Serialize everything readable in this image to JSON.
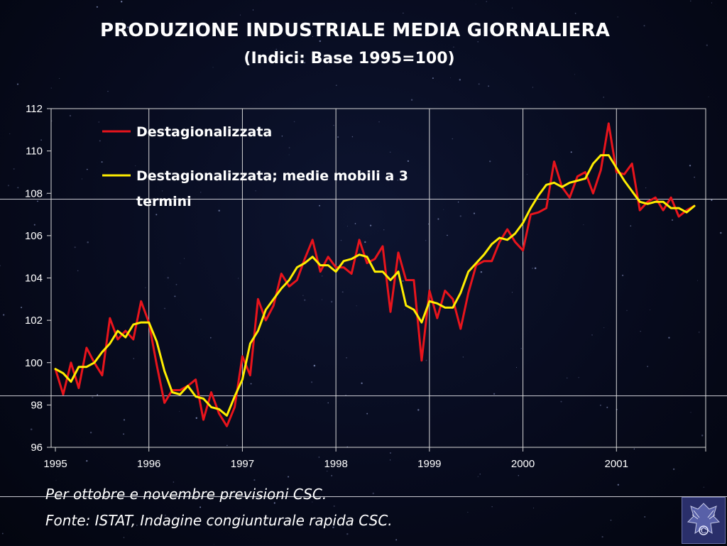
{
  "title": "PRODUZIONE INDUSTRIALE MEDIA GIORNALIERA",
  "subtitle": "(Indici: Base 1995=100)",
  "notes": {
    "line1": "Per ottobre e novembre previsioni CSC.",
    "line2": "Fonte: ISTAT, Indagine congiunturale rapida CSC."
  },
  "colors": {
    "series1": "#e8141c",
    "series2": "#ffee00",
    "grid": "#d8d8d8",
    "background": "#070b1e"
  },
  "logo": {
    "icon": "confindustria-eagle-logo"
  },
  "chart_data": {
    "type": "line",
    "title": "PRODUZIONE INDUSTRIALE MEDIA GIORNALIERA",
    "subtitle": "(Indici: Base 1995=100)",
    "xlabel": "",
    "ylabel": "",
    "ylim": [
      96,
      112
    ],
    "xlim": [
      "1995-01",
      "2001-12"
    ],
    "yticks": [
      96,
      98,
      100,
      102,
      104,
      106,
      108,
      110,
      112
    ],
    "xticks": [
      "1995",
      "1996",
      "1997",
      "1998",
      "1999",
      "2000",
      "2001"
    ],
    "grid": "vertical lines at year starts",
    "legend_position": "top-left",
    "x": [
      "1995-01",
      "1995-02",
      "1995-03",
      "1995-04",
      "1995-05",
      "1995-06",
      "1995-07",
      "1995-08",
      "1995-09",
      "1995-10",
      "1995-11",
      "1995-12",
      "1996-01",
      "1996-02",
      "1996-03",
      "1996-04",
      "1996-05",
      "1996-06",
      "1996-07",
      "1996-08",
      "1996-09",
      "1996-10",
      "1996-11",
      "1996-12",
      "1997-01",
      "1997-02",
      "1997-03",
      "1997-04",
      "1997-05",
      "1997-06",
      "1997-07",
      "1997-08",
      "1997-09",
      "1997-10",
      "1997-11",
      "1997-12",
      "1998-01",
      "1998-02",
      "1998-03",
      "1998-04",
      "1998-05",
      "1998-06",
      "1998-07",
      "1998-08",
      "1998-09",
      "1998-10",
      "1998-11",
      "1998-12",
      "1999-01",
      "1999-02",
      "1999-03",
      "1999-04",
      "1999-05",
      "1999-06",
      "1999-07",
      "1999-08",
      "1999-09",
      "1999-10",
      "1999-11",
      "1999-12",
      "2000-01",
      "2000-02",
      "2000-03",
      "2000-04",
      "2000-05",
      "2000-06",
      "2000-07",
      "2000-08",
      "2000-09",
      "2000-10",
      "2000-11",
      "2000-12",
      "2001-01",
      "2001-02",
      "2001-03",
      "2001-04",
      "2001-05",
      "2001-06",
      "2001-07",
      "2001-08",
      "2001-09",
      "2001-10",
      "2001-11"
    ],
    "series": [
      {
        "name": "Destagionalizzata",
        "values": [
          99.7,
          98.5,
          100.0,
          98.8,
          100.7,
          100.0,
          99.4,
          102.1,
          101.1,
          101.5,
          101.1,
          102.9,
          101.9,
          99.9,
          98.1,
          98.7,
          98.7,
          98.9,
          99.2,
          97.3,
          98.6,
          97.6,
          97.0,
          97.9,
          100.3,
          99.4,
          103.0,
          102.0,
          102.7,
          104.2,
          103.6,
          103.9,
          104.9,
          105.8,
          104.3,
          105.0,
          104.5,
          104.5,
          104.2,
          105.8,
          104.7,
          104.9,
          105.5,
          102.4,
          105.2,
          103.9,
          103.9,
          100.1,
          103.4,
          102.1,
          103.4,
          103.0,
          101.6,
          103.3,
          104.6,
          104.8,
          104.8,
          105.7,
          106.3,
          105.7,
          105.3,
          107.0,
          107.1,
          107.3,
          109.5,
          108.3,
          107.8,
          108.8,
          109.0,
          108.0,
          109.1,
          111.3,
          109.0,
          108.9,
          109.4,
          107.2,
          107.6,
          107.8,
          107.2,
          107.8,
          106.9,
          107.2,
          107.4
        ]
      },
      {
        "name": "Destagionalizzata; medie mobili a 3 termini",
        "values": [
          99.7,
          99.5,
          99.1,
          99.8,
          99.8,
          100.0,
          100.5,
          100.9,
          101.5,
          101.2,
          101.8,
          101.9,
          101.9,
          101.0,
          99.6,
          98.6,
          98.5,
          98.9,
          98.4,
          98.3,
          97.9,
          97.8,
          97.5,
          98.4,
          99.2,
          100.9,
          101.5,
          102.5,
          103.0,
          103.5,
          103.9,
          104.5,
          104.7,
          105.0,
          104.6,
          104.6,
          104.3,
          104.8,
          104.9,
          105.1,
          105.0,
          104.3,
          104.3,
          103.9,
          104.3,
          102.7,
          102.5,
          101.9,
          102.9,
          102.8,
          102.6,
          102.6,
          103.3,
          104.3,
          104.7,
          105.1,
          105.6,
          105.9,
          105.8,
          106.1,
          106.6,
          107.3,
          107.9,
          108.4,
          108.5,
          108.3,
          108.5,
          108.6,
          108.7,
          109.4,
          109.8,
          109.8,
          109.2,
          108.6,
          108.1,
          107.6,
          107.5,
          107.6,
          107.6,
          107.3,
          107.3,
          107.1,
          107.4
        ]
      }
    ]
  }
}
